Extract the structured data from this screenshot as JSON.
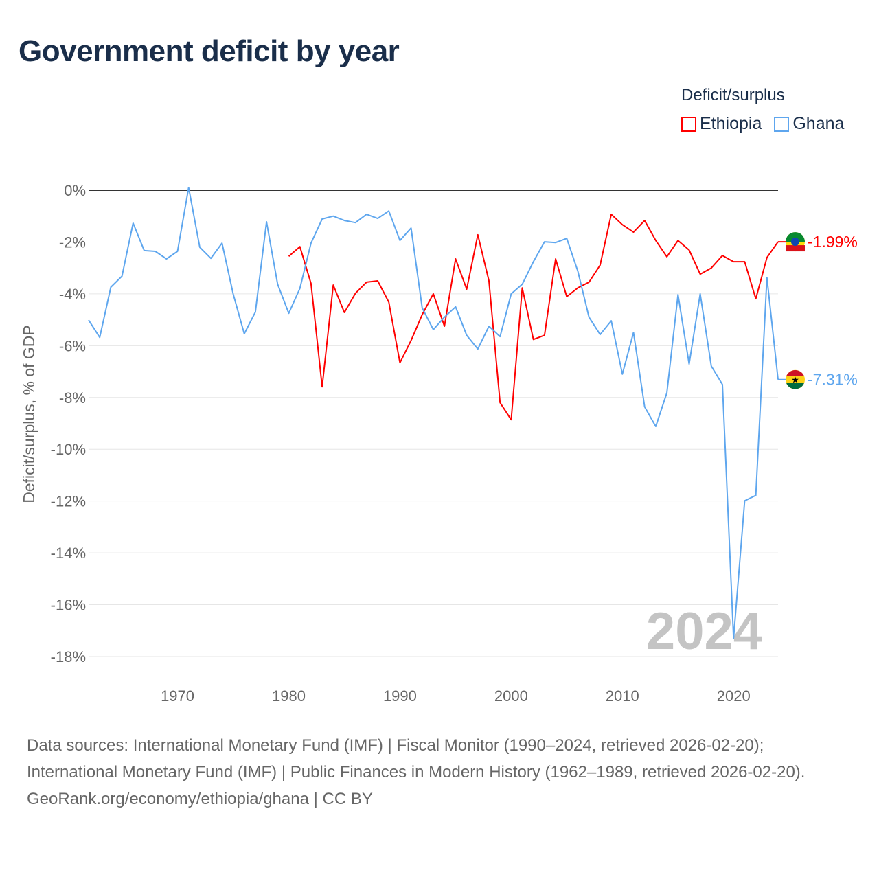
{
  "title": "Government deficit by year",
  "legend": {
    "title": "Deficit/surplus",
    "items": [
      "Ethiopia",
      "Ghana"
    ]
  },
  "source_lines": [
    "Data sources: International Monetary Fund (IMF) | Fiscal Monitor (1990–2024, retrieved 2026-02-20); International Monetary Fund (IMF) | Public Finances in Modern History (1962–1989, retrieved 2026-02-20).",
    "GeoRank.org/economy/ethiopia/ghana | CC BY"
  ],
  "colors": {
    "Ethiopia": "#ff0000",
    "Ghana": "#5ea6ee"
  },
  "chart_data": {
    "type": "line",
    "title": "Government deficit by year",
    "xlabel": "",
    "ylabel": "Deficit/surplus, % of GDP",
    "xlim": [
      1962,
      2024
    ],
    "ylim": [
      -18,
      0
    ],
    "x_ticks": [
      1970,
      1980,
      1990,
      2000,
      2010,
      2020
    ],
    "y_ticks": [
      0,
      -2,
      -4,
      -6,
      -8,
      -10,
      -12,
      -14,
      -16,
      -18
    ],
    "y_tick_labels": [
      "0%",
      "-2%",
      "-4%",
      "-6%",
      "-8%",
      "-10%",
      "-12%",
      "-14%",
      "-16%",
      "-18%"
    ],
    "year_watermark": "2024",
    "series": [
      {
        "name": "Ethiopia",
        "start_year": 1980,
        "end_label": "-1.99%",
        "values": [
          -2.55,
          -2.18,
          -3.6,
          -7.59,
          -3.66,
          -4.72,
          -3.98,
          -3.55,
          -3.5,
          -4.32,
          -6.66,
          -5.8,
          -4.8,
          -4.0,
          -5.25,
          -2.65,
          -3.82,
          -1.72,
          -3.5,
          -8.2,
          -8.86,
          -3.77,
          -5.76,
          -5.6,
          -2.65,
          -4.11,
          -3.77,
          -3.55,
          -2.89,
          -0.93,
          -1.33,
          -1.62,
          -1.17,
          -1.94,
          -2.57,
          -1.94,
          -2.31,
          -3.24,
          -3.0,
          -2.52,
          -2.76,
          -2.76,
          -4.19,
          -2.6,
          -1.99
        ]
      },
      {
        "name": "Ghana",
        "start_year": 1962,
        "end_label": "-7.31%",
        "values": [
          -5.01,
          -5.68,
          -3.74,
          -3.32,
          -1.27,
          -2.33,
          -2.36,
          -2.65,
          -2.36,
          0.1,
          -2.2,
          -2.63,
          -2.04,
          -4.0,
          -5.54,
          -4.7,
          -1.22,
          -3.63,
          -4.75,
          -3.79,
          -2.04,
          -1.11,
          -1.0,
          -1.17,
          -1.25,
          -0.93,
          -1.09,
          -0.8,
          -1.94,
          -1.46,
          -4.54,
          -5.38,
          -4.9,
          -4.5,
          -5.6,
          -6.13,
          -5.25,
          -5.65,
          -4.0,
          -3.63,
          -2.76,
          -1.99,
          -2.02,
          -1.86,
          -3.13,
          -4.9,
          -5.57,
          -5.04,
          -7.1,
          -5.49,
          -8.36,
          -9.12,
          -7.82,
          -4.03,
          -6.71,
          -4.0,
          -6.79,
          -7.5,
          -17.3,
          -11.99,
          -11.78,
          -3.37,
          -7.31
        ]
      }
    ]
  }
}
